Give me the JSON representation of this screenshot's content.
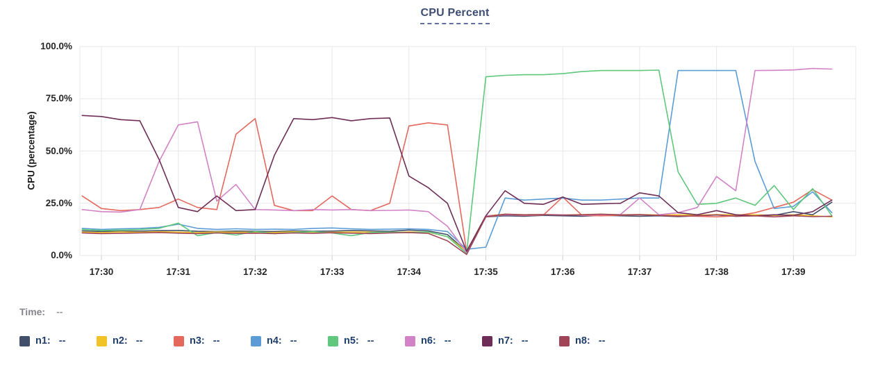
{
  "header": {
    "title": "CPU Percent"
  },
  "status": {
    "time_label": "Time:",
    "time_value": "--"
  },
  "legend": {
    "items": [
      {
        "label": "n1:",
        "value": "--",
        "color": "#424f6b"
      },
      {
        "label": "n2:",
        "value": "--",
        "color": "#f2c326"
      },
      {
        "label": "n3:",
        "value": "--",
        "color": "#e4695c"
      },
      {
        "label": "n4:",
        "value": "--",
        "color": "#5c9cd6"
      },
      {
        "label": "n5:",
        "value": "--",
        "color": "#5fc87c"
      },
      {
        "label": "n6:",
        "value": "--",
        "color": "#d282c6"
      },
      {
        "label": "n7:",
        "value": "--",
        "color": "#6e2d56"
      },
      {
        "label": "n8:",
        "value": "--",
        "color": "#a04457"
      }
    ]
  },
  "chart_data": {
    "type": "line",
    "title": "CPU Percent",
    "xlabel": "",
    "ylabel": "CPU (percentage)",
    "ylim": [
      0,
      100
    ],
    "grid": true,
    "legend_position": "bottom",
    "y_ticks": [
      {
        "label": "0.0%",
        "value": 0
      },
      {
        "label": "25.0%",
        "value": 25
      },
      {
        "label": "50.0%",
        "value": 50
      },
      {
        "label": "75.0%",
        "value": 75
      },
      {
        "label": "100.0%",
        "value": 100
      }
    ],
    "x_ticks": [
      {
        "label": "17:30",
        "value": 30
      },
      {
        "label": "17:31",
        "value": 31
      },
      {
        "label": "17:32",
        "value": 32
      },
      {
        "label": "17:33",
        "value": 33
      },
      {
        "label": "17:34",
        "value": 34
      },
      {
        "label": "17:35",
        "value": 35
      },
      {
        "label": "17:36",
        "value": 36
      },
      {
        "label": "17:37",
        "value": 37
      },
      {
        "label": "17:38",
        "value": 38
      },
      {
        "label": "17:39",
        "value": 39
      }
    ],
    "x_unit": "minutes after 17:00",
    "x": [
      29.75,
      30,
      30.25,
      30.5,
      30.75,
      31,
      31.25,
      31.5,
      31.75,
      32,
      32.25,
      32.5,
      32.75,
      33,
      33.25,
      33.5,
      33.75,
      34,
      34.25,
      34.5,
      34.75,
      35,
      35.25,
      35.5,
      35.75,
      36,
      36.25,
      36.5,
      36.75,
      37,
      37.25,
      37.5,
      37.75,
      38,
      38.25,
      38.5,
      38.75,
      39,
      39.25,
      39.5
    ],
    "series": [
      {
        "name": "n1",
        "color": "#424f6b",
        "values": [
          11.8,
          11.5,
          11.6,
          11.7,
          11.9,
          12,
          11.6,
          11.5,
          11.7,
          11.6,
          11.5,
          11.8,
          11.6,
          11.7,
          12,
          11.8,
          11.6,
          12.2,
          11.8,
          10,
          2,
          18.5,
          19,
          18.8,
          19.2,
          19,
          18.8,
          19.2,
          19,
          18.8,
          19,
          18.6,
          19,
          19.4,
          18.8,
          19,
          19.2,
          21,
          19.5,
          25.5
        ]
      },
      {
        "name": "n2",
        "color": "#f2c326",
        "values": [
          11.2,
          11,
          11.3,
          11.1,
          11.4,
          11.2,
          11,
          11.3,
          11.1,
          11.2,
          11,
          11.4,
          11.2,
          11.1,
          11.3,
          11.2,
          11,
          11.3,
          11.2,
          9,
          2,
          19,
          19.8,
          19.5,
          19.6,
          19.4,
          19.6,
          19.8,
          19.5,
          19.6,
          19.4,
          19.5,
          19.3,
          19.6,
          19.4,
          19.5,
          19.2,
          19.5,
          19,
          18.5
        ]
      },
      {
        "name": "n3",
        "color": "#e4695c",
        "values": [
          28.5,
          22.5,
          21.5,
          22,
          23,
          27,
          23,
          22,
          58,
          65.5,
          24,
          21.5,
          21.5,
          28.5,
          22,
          21.5,
          25,
          62,
          63.5,
          62.5,
          2,
          18.5,
          19.5,
          19.2,
          19.4,
          28,
          19.2,
          19,
          19.3,
          19.5,
          19.2,
          19,
          18.8,
          18.5,
          19,
          20.5,
          23,
          25.5,
          31.5,
          26.5
        ]
      },
      {
        "name": "n4",
        "color": "#5c9cd6",
        "values": [
          13,
          12.5,
          12.8,
          13,
          13.5,
          15,
          13,
          12.5,
          12.8,
          12.5,
          12.6,
          12.5,
          13,
          13.2,
          12.8,
          12.5,
          12.6,
          12.8,
          12.5,
          11.5,
          3,
          4,
          27.5,
          26.5,
          27,
          27.5,
          26.5,
          26.5,
          27,
          27.5,
          27.5,
          88.5,
          88.5,
          88.5,
          88.5,
          45,
          22.5,
          23.5,
          30.5,
          20.5
        ]
      },
      {
        "name": "n5",
        "color": "#5fc87c",
        "values": [
          12.5,
          12,
          12.2,
          12.5,
          13,
          15.5,
          9.5,
          11,
          9.8,
          11.5,
          10.5,
          11,
          11.5,
          10.8,
          9.5,
          11,
          11.2,
          11,
          11.3,
          9,
          1,
          85.5,
          86.2,
          86.5,
          86.5,
          87,
          88,
          88.5,
          88.5,
          88.5,
          88.7,
          40,
          24.5,
          25,
          27.5,
          24,
          33.5,
          22,
          32,
          19
        ]
      },
      {
        "name": "n6",
        "color": "#d282c6",
        "values": [
          22,
          21,
          20.8,
          22,
          45,
          62.5,
          64,
          26,
          34,
          22,
          21.8,
          21.5,
          22,
          21.8,
          22,
          21.5,
          21.6,
          21.8,
          21,
          14,
          1.5,
          19,
          19.5,
          19.4,
          19.6,
          19.5,
          19.3,
          19.5,
          19.6,
          27.5,
          19.5,
          20.5,
          23,
          37.8,
          31,
          88.5,
          88.6,
          88.8,
          89.5,
          89.2
        ]
      },
      {
        "name": "n7",
        "color": "#6e2d56",
        "values": [
          67,
          66.5,
          65,
          64.5,
          46,
          23,
          21,
          28.5,
          21.5,
          22,
          48,
          65.5,
          65,
          66,
          64.5,
          65.5,
          65.8,
          38,
          32.5,
          25,
          2,
          19,
          31,
          25,
          24.5,
          28,
          24.5,
          24.8,
          25,
          30,
          28.5,
          20.5,
          19.5,
          21.5,
          19.5,
          19,
          19.5,
          19.2,
          21,
          26.5
        ]
      },
      {
        "name": "n8",
        "color": "#a04457",
        "values": [
          10.8,
          10.5,
          10.6,
          10.8,
          11,
          10.7,
          10.5,
          10.8,
          10.6,
          10.7,
          10.5,
          10.8,
          10.6,
          10.9,
          10.7,
          10.5,
          10.8,
          11,
          10.6,
          7,
          0.5,
          18.5,
          19.8,
          19.5,
          19.6,
          19.3,
          19.5,
          19.8,
          19.4,
          19.6,
          19.2,
          18.8,
          19,
          19.5,
          18.8,
          19,
          18.5,
          19,
          18.6,
          18.8
        ]
      }
    ]
  }
}
